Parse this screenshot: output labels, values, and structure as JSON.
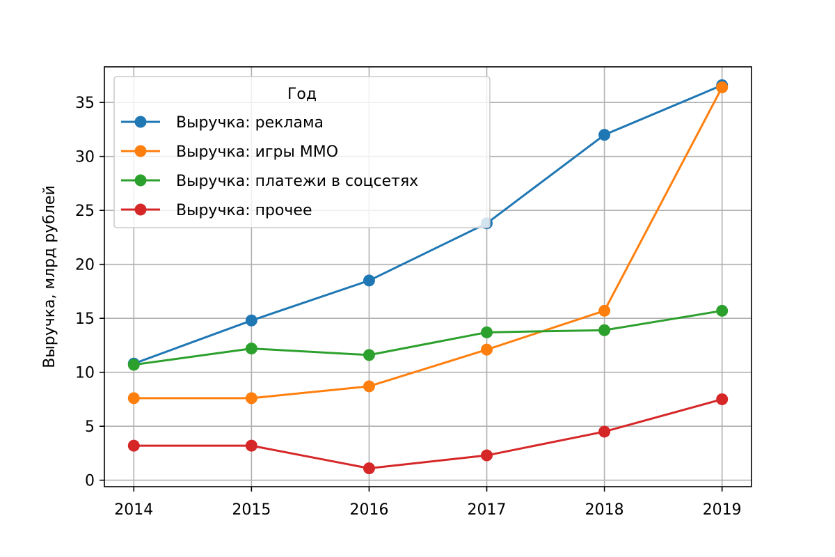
{
  "chart_data": {
    "type": "line",
    "title": "",
    "xlabel": "",
    "ylabel": "Выручка, млрд рублей",
    "x": [
      "2014",
      "2015",
      "2016",
      "2017",
      "2018",
      "2019"
    ],
    "ylim": [
      -0.6,
      38.3
    ],
    "yticks": [
      0,
      5,
      10,
      15,
      20,
      25,
      30,
      35
    ],
    "grid": true,
    "legend": {
      "title": "Год",
      "placement": "top-left"
    },
    "series": [
      {
        "name": "Выручка: реклама",
        "color": "#1f77b4",
        "values": [
          10.8,
          14.8,
          18.5,
          23.8,
          32.0,
          36.6
        ]
      },
      {
        "name": "Выручка: игры MMO",
        "color": "#ff7f0e",
        "values": [
          7.6,
          7.6,
          8.7,
          12.1,
          15.7,
          36.4
        ]
      },
      {
        "name": "Выручка: платежи в соцсетях",
        "color": "#2ca02c",
        "values": [
          10.7,
          12.2,
          11.6,
          13.7,
          13.9,
          15.7
        ]
      },
      {
        "name": "Выручка: прочее",
        "color": "#d62728",
        "values": [
          3.2,
          3.2,
          1.1,
          2.3,
          4.5,
          7.5
        ]
      }
    ]
  }
}
